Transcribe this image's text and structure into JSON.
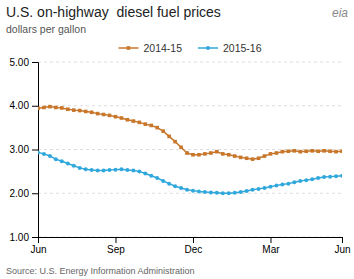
{
  "chart_data": {
    "type": "line",
    "title": "U.S. on-highway  diesel fuel prices",
    "subtitle": "dollars per gallon",
    "annotations": [
      "Source: U.S. Energy Information Administration",
      "eia"
    ],
    "categories": [
      "Jun",
      null,
      null,
      null,
      null,
      null,
      null,
      null,
      null,
      null,
      null,
      null,
      null,
      "Sep",
      null,
      null,
      null,
      null,
      null,
      null,
      null,
      null,
      null,
      null,
      null,
      null,
      "Dec",
      null,
      null,
      null,
      null,
      null,
      null,
      null,
      null,
      null,
      null,
      null,
      null,
      "Mar",
      null,
      null,
      null,
      null,
      null,
      null,
      null,
      null,
      null,
      null,
      null,
      "Jun"
    ],
    "ylim": [
      1.0,
      5.0
    ],
    "yticks": [
      {
        "value": 1.0,
        "label": "1.00"
      },
      {
        "value": 2.0,
        "label": "2.00"
      },
      {
        "value": 3.0,
        "label": "3.00"
      },
      {
        "value": 4.0,
        "label": "4.00"
      },
      {
        "value": 5.0,
        "label": "5.00"
      }
    ],
    "grid": true,
    "legend": "top",
    "series": [
      {
        "name": "2014-15",
        "color": "#c8762a",
        "marker": "square",
        "values": [
          3.94,
          3.96,
          3.98,
          3.96,
          3.95,
          3.92,
          3.9,
          3.89,
          3.87,
          3.85,
          3.82,
          3.8,
          3.78,
          3.75,
          3.72,
          3.68,
          3.65,
          3.62,
          3.58,
          3.55,
          3.5,
          3.42,
          3.3,
          3.18,
          3.05,
          2.92,
          2.88,
          2.88,
          2.9,
          2.92,
          2.95,
          2.9,
          2.88,
          2.85,
          2.82,
          2.8,
          2.78,
          2.8,
          2.85,
          2.9,
          2.92,
          2.95,
          2.96,
          2.97,
          2.95,
          2.96,
          2.97,
          2.96,
          2.97,
          2.96,
          2.95,
          2.96
        ]
      },
      {
        "name": "2015-16",
        "color": "#30a8dc",
        "marker": "circle",
        "values": [
          2.93,
          2.9,
          2.85,
          2.78,
          2.73,
          2.68,
          2.63,
          2.58,
          2.55,
          2.53,
          2.52,
          2.52,
          2.53,
          2.54,
          2.55,
          2.53,
          2.52,
          2.5,
          2.45,
          2.4,
          2.35,
          2.28,
          2.22,
          2.16,
          2.12,
          2.08,
          2.06,
          2.04,
          2.03,
          2.02,
          2.01,
          2.0,
          2.0,
          2.01,
          2.03,
          2.05,
          2.08,
          2.1,
          2.12,
          2.15,
          2.18,
          2.2,
          2.22,
          2.25,
          2.28,
          2.3,
          2.32,
          2.35,
          2.37,
          2.38,
          2.39,
          2.4
        ]
      }
    ]
  }
}
